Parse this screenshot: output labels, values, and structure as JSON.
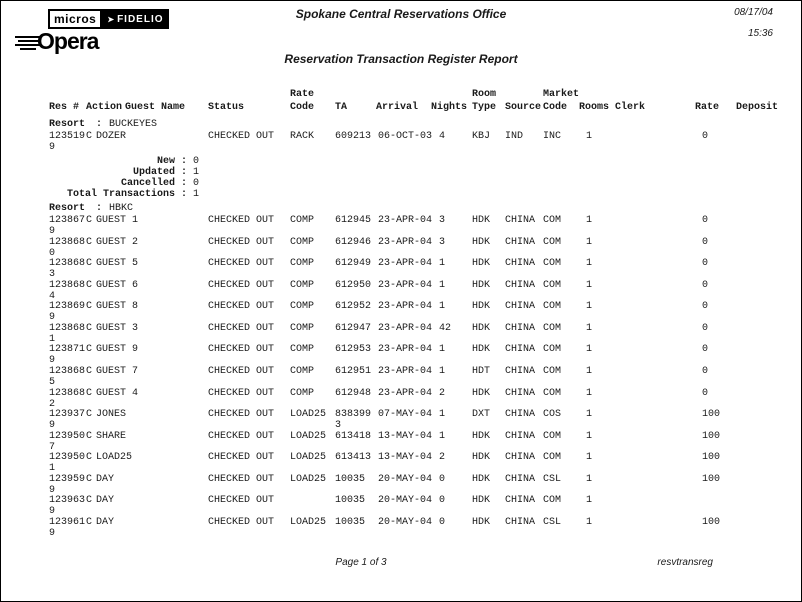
{
  "page": {
    "office": "Spokane Central Reservations Office",
    "title": "Reservation Transaction Register Report",
    "date": "08/17/04",
    "time": "15:36"
  },
  "logo": {
    "micros": "micros",
    "fidelio": "FIDELIO",
    "arrow_glyph": "➤",
    "opera": "Opera"
  },
  "columns": {
    "res": "Res #",
    "action": "Action",
    "guest": "Guest Name",
    "status": "Status",
    "rate_code_1": "Rate",
    "rate_code_2": "Code",
    "ta": "TA",
    "arrival": "Arrival",
    "nights": "Nights",
    "room_1": "Room",
    "room_2": "Type",
    "source": "Source",
    "market_1": "Market",
    "market_2": "Code",
    "rooms": "Rooms",
    "clerk": "Clerk",
    "rate": "Rate",
    "deposit": "Deposit"
  },
  "resort_label": "Resort",
  "colon": ":",
  "sections": [
    {
      "resort": "BUCKEYES",
      "rows": [
        {
          "res": "123519",
          "res_wrap": "9",
          "action": "C",
          "guest": "DOZER",
          "status": "CHECKED OUT",
          "rate_code": "RACK",
          "ta": "609213",
          "ta_wrap": "",
          "arrival": "06-OCT-03",
          "nights": "4",
          "room_type": "KBJ",
          "source": "IND",
          "market": "INC",
          "rooms": "1",
          "clerk": "",
          "rate": "0",
          "deposit": ""
        }
      ],
      "summary": [
        {
          "label": "New",
          "value": "0"
        },
        {
          "label": "Updated",
          "value": "1"
        },
        {
          "label": "Cancelled",
          "value": "0"
        },
        {
          "label": "Total Transactions",
          "value": "1"
        }
      ]
    },
    {
      "resort": "HBKC",
      "rows": [
        {
          "res": "123867",
          "res_wrap": "9",
          "action": "C",
          "guest": "GUEST 1",
          "status": "CHECKED OUT",
          "rate_code": "COMP",
          "ta": "612945",
          "ta_wrap": "",
          "arrival": "23-APR-04",
          "nights": "3",
          "room_type": "HDK",
          "source": "CHINA",
          "market": "COM",
          "rooms": "1",
          "clerk": "",
          "rate": "0",
          "deposit": ""
        },
        {
          "res": "123868",
          "res_wrap": "0",
          "action": "C",
          "guest": "GUEST 2",
          "status": "CHECKED OUT",
          "rate_code": "COMP",
          "ta": "612946",
          "ta_wrap": "",
          "arrival": "23-APR-04",
          "nights": "3",
          "room_type": "HDK",
          "source": "CHINA",
          "market": "COM",
          "rooms": "1",
          "clerk": "",
          "rate": "0",
          "deposit": ""
        },
        {
          "res": "123868",
          "res_wrap": "3",
          "action": "C",
          "guest": "GUEST 5",
          "status": "CHECKED OUT",
          "rate_code": "COMP",
          "ta": "612949",
          "ta_wrap": "",
          "arrival": "23-APR-04",
          "nights": "1",
          "room_type": "HDK",
          "source": "CHINA",
          "market": "COM",
          "rooms": "1",
          "clerk": "",
          "rate": "0",
          "deposit": ""
        },
        {
          "res": "123868",
          "res_wrap": "4",
          "action": "C",
          "guest": "GUEST 6",
          "status": "CHECKED OUT",
          "rate_code": "COMP",
          "ta": "612950",
          "ta_wrap": "",
          "arrival": "23-APR-04",
          "nights": "1",
          "room_type": "HDK",
          "source": "CHINA",
          "market": "COM",
          "rooms": "1",
          "clerk": "",
          "rate": "0",
          "deposit": ""
        },
        {
          "res": "123869",
          "res_wrap": "9",
          "action": "C",
          "guest": "GUEST 8",
          "status": "CHECKED OUT",
          "rate_code": "COMP",
          "ta": "612952",
          "ta_wrap": "",
          "arrival": "23-APR-04",
          "nights": "1",
          "room_type": "HDK",
          "source": "CHINA",
          "market": "COM",
          "rooms": "1",
          "clerk": "",
          "rate": "0",
          "deposit": ""
        },
        {
          "res": "123868",
          "res_wrap": "1",
          "action": "C",
          "guest": "GUEST 3",
          "status": "CHECKED OUT",
          "rate_code": "COMP",
          "ta": "612947",
          "ta_wrap": "",
          "arrival": "23-APR-04",
          "nights": "42",
          "room_type": "HDK",
          "source": "CHINA",
          "market": "COM",
          "rooms": "1",
          "clerk": "",
          "rate": "0",
          "deposit": ""
        },
        {
          "res": "123871",
          "res_wrap": "9",
          "action": "C",
          "guest": "GUEST 9",
          "status": "CHECKED OUT",
          "rate_code": "COMP",
          "ta": "612953",
          "ta_wrap": "",
          "arrival": "23-APR-04",
          "nights": "1",
          "room_type": "HDK",
          "source": "CHINA",
          "market": "COM",
          "rooms": "1",
          "clerk": "",
          "rate": "0",
          "deposit": ""
        },
        {
          "res": "123868",
          "res_wrap": "5",
          "action": "C",
          "guest": "GUEST 7",
          "status": "CHECKED OUT",
          "rate_code": "COMP",
          "ta": "612951",
          "ta_wrap": "",
          "arrival": "23-APR-04",
          "nights": "1",
          "room_type": "HDT",
          "source": "CHINA",
          "market": "COM",
          "rooms": "1",
          "clerk": "",
          "rate": "0",
          "deposit": ""
        },
        {
          "res": "123868",
          "res_wrap": "2",
          "action": "C",
          "guest": "GUEST 4",
          "status": "CHECKED OUT",
          "rate_code": "COMP",
          "ta": "612948",
          "ta_wrap": "",
          "arrival": "23-APR-04",
          "nights": "2",
          "room_type": "HDK",
          "source": "CHINA",
          "market": "COM",
          "rooms": "1",
          "clerk": "",
          "rate": "0",
          "deposit": ""
        },
        {
          "res": "123937",
          "res_wrap": "9",
          "action": "C",
          "guest": "JONES",
          "status": "CHECKED OUT",
          "rate_code": "LOAD25",
          "ta": "838399",
          "ta_wrap": "3",
          "arrival": "07-MAY-04",
          "nights": "1",
          "room_type": "DXT",
          "source": "CHINA",
          "market": "COS",
          "rooms": "1",
          "clerk": "",
          "rate": "100",
          "deposit": ""
        },
        {
          "res": "123950",
          "res_wrap": "7",
          "action": "C",
          "guest": "SHARE",
          "status": "CHECKED OUT",
          "rate_code": "LOAD25",
          "ta": "613418",
          "ta_wrap": "",
          "arrival": "13-MAY-04",
          "nights": "1",
          "room_type": "HDK",
          "source": "CHINA",
          "market": "COM",
          "rooms": "1",
          "clerk": "",
          "rate": "100",
          "deposit": ""
        },
        {
          "res": "123950",
          "res_wrap": "1",
          "action": "C",
          "guest": "LOAD25",
          "status": "CHECKED OUT",
          "rate_code": "LOAD25",
          "ta": "613413",
          "ta_wrap": "",
          "arrival": "13-MAY-04",
          "nights": "2",
          "room_type": "HDK",
          "source": "CHINA",
          "market": "COM",
          "rooms": "1",
          "clerk": "",
          "rate": "100",
          "deposit": ""
        },
        {
          "res": "123959",
          "res_wrap": "9",
          "action": "C",
          "guest": "DAY",
          "status": "CHECKED OUT",
          "rate_code": "LOAD25",
          "ta": "10035",
          "ta_wrap": "",
          "arrival": "20-MAY-04",
          "nights": "0",
          "room_type": "HDK",
          "source": "CHINA",
          "market": "CSL",
          "rooms": "1",
          "clerk": "",
          "rate": "100",
          "deposit": ""
        },
        {
          "res": "123963",
          "res_wrap": "9",
          "action": "C",
          "guest": "DAY",
          "status": "CHECKED OUT",
          "rate_code": "",
          "ta": "10035",
          "ta_wrap": "",
          "arrival": "20-MAY-04",
          "nights": "0",
          "room_type": "HDK",
          "source": "CHINA",
          "market": "COM",
          "rooms": "1",
          "clerk": "",
          "rate": "",
          "deposit": ""
        },
        {
          "res": "123961",
          "res_wrap": "9",
          "action": "C",
          "guest": "DAY",
          "status": "CHECKED OUT",
          "rate_code": "LOAD25",
          "ta": "10035",
          "ta_wrap": "",
          "arrival": "20-MAY-04",
          "nights": "0",
          "room_type": "HDK",
          "source": "CHINA",
          "market": "CSL",
          "rooms": "1",
          "clerk": "",
          "rate": "100",
          "deposit": ""
        }
      ],
      "summary": []
    }
  ],
  "footer": {
    "page": "Page 1 of 3",
    "report_id": "resvtransreg"
  }
}
